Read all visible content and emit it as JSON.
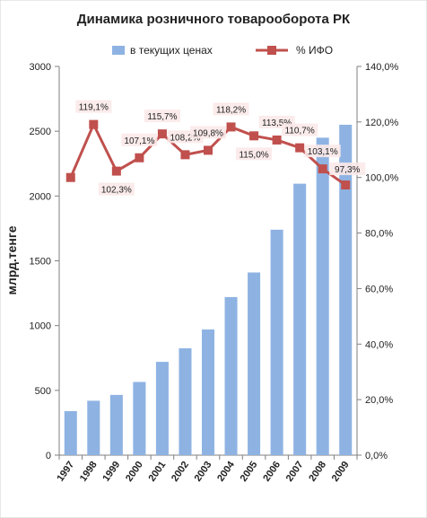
{
  "chart_data": {
    "type": "bar+line",
    "title": "Динамика розничного товарооборота РК",
    "ylabel": "млрд.тенге",
    "categories": [
      "1997",
      "1998",
      "1999",
      "2000",
      "2001",
      "2002",
      "2003",
      "2004",
      "2005",
      "2006",
      "2007",
      "2008",
      "2009"
    ],
    "series": [
      {
        "name": "в текущих ценах",
        "type": "bar",
        "axis": "left",
        "color": "#8eb3e3",
        "values": [
          340,
          420,
          465,
          565,
          720,
          825,
          970,
          1220,
          1410,
          1740,
          2095,
          2450,
          2550
        ]
      },
      {
        "name": "% ИФО",
        "type": "line",
        "axis": "right",
        "color": "#c0504d",
        "values": [
          100.0,
          119.1,
          102.3,
          107.1,
          115.7,
          108.2,
          109.8,
          118.2,
          115.0,
          113.5,
          110.7,
          103.1,
          97.3
        ],
        "labels": [
          "",
          "119,1%",
          "102,3%",
          "107,1%",
          "115,7%",
          "108,2%",
          "109,8%",
          "118,2%",
          "115,0%",
          "113,5%",
          "110,7%",
          "103,1%",
          "97,3%"
        ]
      }
    ],
    "y_left": {
      "min": 0,
      "max": 3000,
      "ticks": [
        "0",
        "500",
        "1000",
        "1500",
        "2000",
        "2500",
        "3000"
      ]
    },
    "y_right": {
      "min": 0,
      "max": 140,
      "ticks": [
        "0,0%",
        "20,0%",
        "40,0%",
        "60,0%",
        "80,0%",
        "100,0%",
        "120,0%",
        "140,0%"
      ]
    },
    "legend": "top",
    "grid": false
  }
}
